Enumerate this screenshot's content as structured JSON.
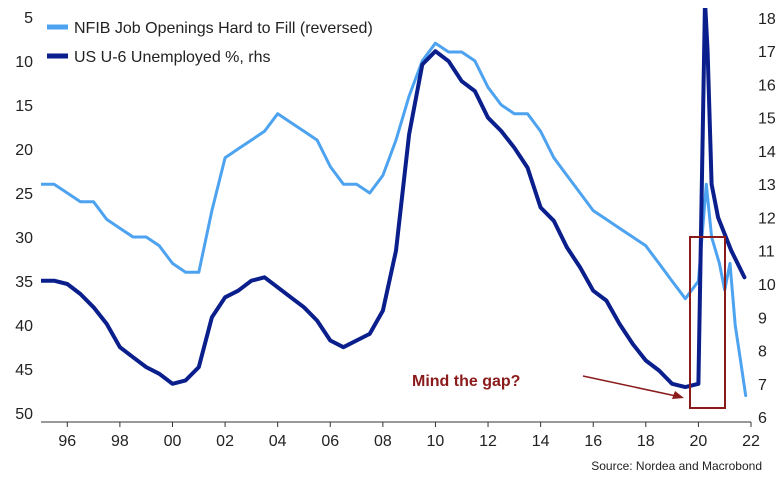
{
  "colors": {
    "series1": "#4da3f0",
    "series2": "#0a1e8c",
    "annotation": "#8b1a1a",
    "axis": "#333333"
  },
  "chart_data": {
    "type": "line",
    "legend": {
      "placement": "top-left",
      "items": [
        {
          "label": "NFIB Job Openings Hard to Fill (reversed)",
          "color": "#4da3f0"
        },
        {
          "label": "US U-6 Unemployed %, rhs",
          "color": "#0a1e8c"
        }
      ]
    },
    "x_axis": {
      "ticks": [
        "96",
        "98",
        "00",
        "02",
        "04",
        "06",
        "08",
        "10",
        "12",
        "14",
        "16",
        "18",
        "20",
        "22"
      ],
      "tick_values": [
        1996,
        1998,
        2000,
        2002,
        2004,
        2006,
        2008,
        2010,
        2012,
        2014,
        2016,
        2018,
        2020,
        2022
      ],
      "range": [
        1995,
        2022
      ]
    },
    "y_left": {
      "reversed": true,
      "range": [
        4,
        51
      ],
      "ticks": [
        "5",
        "10",
        "15",
        "20",
        "25",
        "30",
        "35",
        "40",
        "45",
        "50"
      ],
      "tick_values": [
        5,
        10,
        15,
        20,
        25,
        30,
        35,
        40,
        45,
        50
      ]
    },
    "y_right": {
      "range": [
        5.85,
        18.3
      ],
      "ticks": [
        "6",
        "7",
        "8",
        "9",
        "10",
        "11",
        "12",
        "13",
        "14",
        "15",
        "16",
        "17",
        "18"
      ],
      "tick_values": [
        6,
        7,
        8,
        9,
        10,
        11,
        12,
        13,
        14,
        15,
        16,
        17,
        18
      ]
    },
    "grid": false,
    "series": [
      {
        "name": "NFIB Job Openings Hard to Fill (reversed)",
        "axis": "left",
        "x": [
          1995.0,
          1995.5,
          1996.0,
          1996.5,
          1997.0,
          1997.5,
          1998.0,
          1998.5,
          1999.0,
          1999.5,
          2000.0,
          2000.5,
          2001.0,
          2001.5,
          2002.0,
          2002.5,
          2003.0,
          2003.5,
          2004.0,
          2004.5,
          2005.0,
          2005.5,
          2006.0,
          2006.5,
          2007.0,
          2007.5,
          2008.0,
          2008.5,
          2009.0,
          2009.5,
          2010.0,
          2010.5,
          2011.0,
          2011.5,
          2012.0,
          2012.5,
          2013.0,
          2013.5,
          2014.0,
          2014.5,
          2015.0,
          2015.5,
          2016.0,
          2016.5,
          2017.0,
          2017.5,
          2018.0,
          2018.5,
          2019.0,
          2019.5,
          2020.0,
          2020.3,
          2020.5,
          2020.8,
          2021.0,
          2021.2,
          2021.4,
          2021.6,
          2021.8
        ],
        "values": [
          24,
          24,
          25,
          26,
          26,
          28,
          29,
          30,
          30,
          31,
          33,
          34,
          34,
          27,
          21,
          20,
          19,
          18,
          16,
          17,
          18,
          19,
          22,
          24,
          24,
          25,
          23,
          19,
          14,
          10,
          8,
          9,
          9,
          10,
          13,
          15,
          16,
          16,
          18,
          21,
          23,
          25,
          27,
          28,
          29,
          30,
          31,
          33,
          35,
          37,
          35,
          24,
          30,
          33,
          36,
          33,
          40,
          44,
          48
        ],
        "color": "#4da3f0"
      },
      {
        "name": "US U-6 Unemployed %, rhs",
        "axis": "right",
        "x": [
          1995.0,
          1995.5,
          1996.0,
          1996.5,
          1997.0,
          1997.5,
          1998.0,
          1998.5,
          1999.0,
          1999.5,
          2000.0,
          2000.5,
          2001.0,
          2001.5,
          2002.0,
          2002.5,
          2003.0,
          2003.5,
          2004.0,
          2004.5,
          2005.0,
          2005.5,
          2006.0,
          2006.5,
          2007.0,
          2007.5,
          2008.0,
          2008.5,
          2009.0,
          2009.5,
          2010.0,
          2010.5,
          2011.0,
          2011.5,
          2012.0,
          2012.5,
          2013.0,
          2013.5,
          2014.0,
          2014.5,
          2015.0,
          2015.5,
          2016.0,
          2016.5,
          2017.0,
          2017.5,
          2018.0,
          2018.5,
          2019.0,
          2019.5,
          2020.0,
          2020.25,
          2020.35,
          2020.5,
          2020.75,
          2021.0,
          2021.25,
          2021.5,
          2021.75
        ],
        "values": [
          10.1,
          10.1,
          10.0,
          9.7,
          9.3,
          8.8,
          8.1,
          7.8,
          7.5,
          7.3,
          7.0,
          7.1,
          7.5,
          9.0,
          9.6,
          9.8,
          10.1,
          10.2,
          9.9,
          9.6,
          9.3,
          8.9,
          8.3,
          8.1,
          8.3,
          8.5,
          9.2,
          11.0,
          14.5,
          16.6,
          17.0,
          16.7,
          16.1,
          15.8,
          15.0,
          14.6,
          14.1,
          13.5,
          12.3,
          11.9,
          11.1,
          10.5,
          9.8,
          9.5,
          8.8,
          8.2,
          7.7,
          7.4,
          7.0,
          6.9,
          7.0,
          18.5,
          17.0,
          13.0,
          12.0,
          11.5,
          11.0,
          10.6,
          10.2
        ],
        "color": "#0a1e8c"
      }
    ],
    "annotations": [
      {
        "text": "Mind the gap?",
        "color": "#8b1a1a"
      }
    ]
  },
  "source": {
    "text": "Source: Nordea and Macrobond"
  }
}
